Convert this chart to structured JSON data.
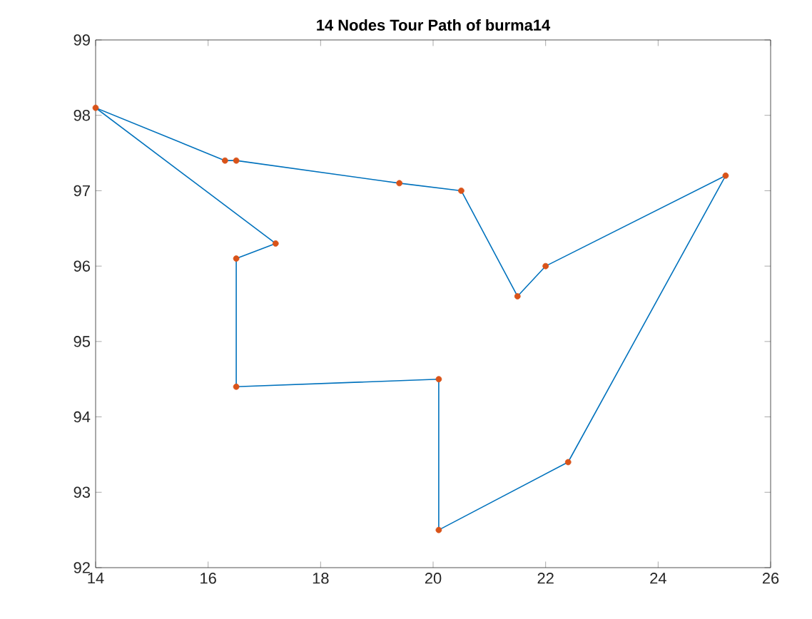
{
  "chart_data": {
    "type": "line",
    "title": "14 Nodes Tour Path of  burma14",
    "xlim": [
      14,
      26
    ],
    "ylim": [
      92,
      99
    ],
    "xticks": [
      14,
      16,
      18,
      20,
      22,
      24,
      26
    ],
    "yticks": [
      92,
      93,
      94,
      95,
      96,
      97,
      98,
      99
    ],
    "series": [
      {
        "color": "#0072bd",
        "marker": "none",
        "x": [
          16.5,
          16.5,
          20.1,
          20.1,
          22.4,
          25.2
        ],
        "values": [
          96.1,
          94.4,
          94.5,
          92.5,
          93.4,
          97.2
        ]
      },
      {
        "color": "#0072bd",
        "marker": "none",
        "x": [
          25.2,
          22.0,
          21.5,
          20.5,
          19.4,
          16.5,
          16.3,
          14.0
        ],
        "values": [
          97.2,
          96.0,
          95.6,
          97.0,
          97.1,
          97.4,
          97.4,
          98.1
        ]
      },
      {
        "color": "#0072bd",
        "marker": "none",
        "x": [
          14.0,
          17.2
        ],
        "values": [
          98.1,
          96.3
        ]
      },
      {
        "color": "#0072bd",
        "marker": "none",
        "x": [
          17.2,
          16.5
        ],
        "values": [
          96.3,
          96.1
        ]
      },
      {
        "type": "scatter",
        "color": "#d95319",
        "marker": "circle",
        "x": [
          16.5,
          16.5,
          20.1,
          20.1,
          22.4,
          25.2,
          22.0,
          21.5,
          20.5,
          19.4,
          16.5,
          16.3,
          14.0,
          17.2
        ],
        "values": [
          96.1,
          94.4,
          94.5,
          92.5,
          93.4,
          97.2,
          96.0,
          95.6,
          97.0,
          97.1,
          97.4,
          97.4,
          98.1,
          96.3
        ]
      }
    ]
  }
}
